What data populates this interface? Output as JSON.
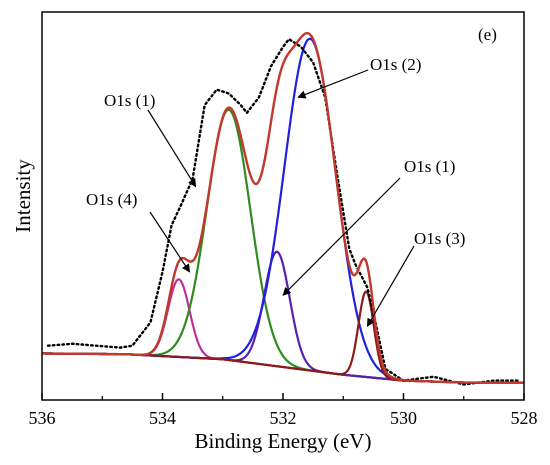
{
  "panel_label": "(e)",
  "chart_data": {
    "type": "line",
    "title": "",
    "xlabel": "Binding Energy (eV)",
    "ylabel": "Intensity",
    "xlim": [
      536,
      528
    ],
    "x_reversed": true,
    "ylim": [
      0,
      1
    ],
    "x_ticks": [
      536,
      534,
      532,
      530,
      528
    ],
    "y_ticks_shown": false,
    "grid": false,
    "legend": "none",
    "background": {
      "color": "#5a1e1e",
      "values": [
        [
          536,
          0.12
        ],
        [
          534.6,
          0.118
        ],
        [
          533,
          0.105
        ],
        [
          532,
          0.085
        ],
        [
          531,
          0.065
        ],
        [
          530,
          0.05
        ],
        [
          529,
          0.045
        ],
        [
          528,
          0.045
        ]
      ]
    },
    "components": [
      {
        "label": "O1s (4)",
        "center": 533.73,
        "height": 0.2,
        "fwhm": 0.42,
        "color": "#c0309a"
      },
      {
        "label": "O1s (1)",
        "center": 532.9,
        "height": 0.645,
        "fwhm": 0.85,
        "color": "#2e8b1e"
      },
      {
        "label": "O1s (1)",
        "center": 532.1,
        "height": 0.295,
        "fwhm": 0.5,
        "color": "#5a1fb0"
      },
      {
        "label": "O1s (2)",
        "center": 531.55,
        "height": 0.855,
        "fwhm": 1.0,
        "color": "#2020e0"
      },
      {
        "label": "O1s (3)",
        "center": 530.62,
        "height": 0.22,
        "fwhm": 0.3,
        "color": "#8b1a1a"
      }
    ],
    "fit_color": "#c0392b",
    "raw_data": {
      "style": "dotted",
      "color": "#000000",
      "points": [
        [
          535.9,
          0.14
        ],
        [
          535.5,
          0.145
        ],
        [
          535.1,
          0.14
        ],
        [
          534.7,
          0.135
        ],
        [
          534.5,
          0.14
        ],
        [
          534.2,
          0.2
        ],
        [
          534.0,
          0.33
        ],
        [
          533.85,
          0.45
        ],
        [
          533.7,
          0.5
        ],
        [
          533.5,
          0.57
        ],
        [
          533.3,
          0.76
        ],
        [
          533.1,
          0.8
        ],
        [
          532.9,
          0.79
        ],
        [
          532.7,
          0.76
        ],
        [
          532.6,
          0.74
        ],
        [
          532.4,
          0.78
        ],
        [
          532.2,
          0.86
        ],
        [
          532.0,
          0.91
        ],
        [
          531.9,
          0.93
        ],
        [
          531.7,
          0.91
        ],
        [
          531.5,
          0.87
        ],
        [
          531.3,
          0.78
        ],
        [
          531.1,
          0.58
        ],
        [
          530.9,
          0.39
        ],
        [
          530.8,
          0.35
        ],
        [
          530.6,
          0.29
        ],
        [
          530.45,
          0.19
        ],
        [
          530.3,
          0.08
        ],
        [
          530.0,
          0.05
        ],
        [
          529.5,
          0.06
        ],
        [
          529.0,
          0.04
        ],
        [
          528.5,
          0.05
        ],
        [
          528.1,
          0.05
        ]
      ]
    },
    "annotations": [
      {
        "text": "O1s (1)",
        "target": [
          533.45,
          0.55
        ]
      },
      {
        "text": "O1s (2)",
        "target": [
          531.75,
          0.78
        ]
      },
      {
        "text": "O1s (1)",
        "target": [
          532.0,
          0.27
        ]
      },
      {
        "text": "O1s (4)",
        "target": [
          533.55,
          0.33
        ]
      },
      {
        "text": "O1s (3)",
        "target": [
          530.6,
          0.19
        ]
      }
    ]
  }
}
